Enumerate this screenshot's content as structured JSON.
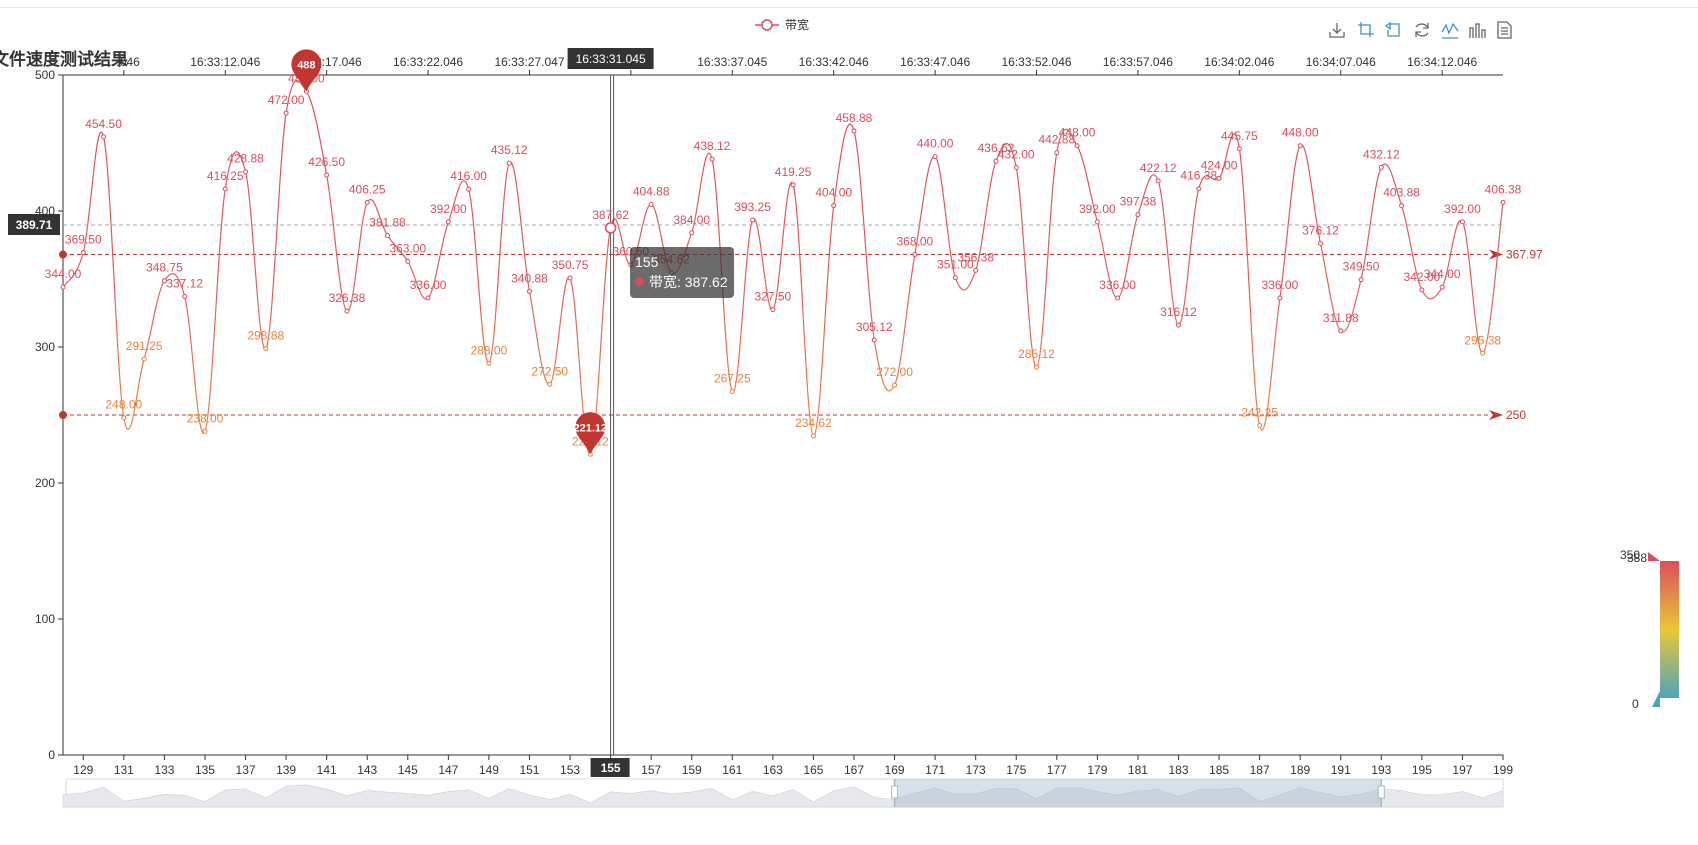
{
  "title": "文件速度测试结果",
  "legend": {
    "series_name": "带宽"
  },
  "toolbox": [
    {
      "name": "download-icon"
    },
    {
      "name": "zoom-icon"
    },
    {
      "name": "zoom-reset-icon"
    },
    {
      "name": "restore-icon"
    },
    {
      "name": "line-chart-icon"
    },
    {
      "name": "bar-chart-icon"
    },
    {
      "name": "data-view-icon"
    }
  ],
  "tooltip": {
    "header": "155",
    "label": "带宽: 387.62"
  },
  "axis_pointer": {
    "top_time": "16:33:31.045",
    "bottom_index": "155",
    "y_value": "389.71"
  },
  "visual_map": {
    "max_label": "388",
    "min_label": "0",
    "handle_label": "350"
  },
  "chart_data": {
    "type": "line",
    "xlabel": "",
    "ylabel": "",
    "x_start": 128,
    "x_end": 199,
    "ylim": [
      0,
      500
    ],
    "y_ticks": [
      "0",
      "100",
      "200",
      "300",
      "400",
      "500"
    ],
    "x_ticks": [
      "129",
      "131",
      "133",
      "135",
      "137",
      "139",
      "141",
      "143",
      "145",
      "147",
      "149",
      "151",
      "153",
      "155",
      "157",
      "159",
      "161",
      "163",
      "165",
      "167",
      "169",
      "171",
      "173",
      "175",
      "177",
      "179",
      "181",
      "183",
      "185",
      "187",
      "189",
      "191",
      "193",
      "195",
      "197",
      "199"
    ],
    "top_time_ticks": [
      {
        "x": 131,
        "label": "…046"
      },
      {
        "x": 136,
        "label": "16:33:12.046"
      },
      {
        "x": 141,
        "label": "16:33:17.046"
      },
      {
        "x": 146,
        "label": "16:33:22.046"
      },
      {
        "x": 151,
        "label": "16:33:27.047"
      },
      {
        "x": 156,
        "label": "…05"
      },
      {
        "x": 161,
        "label": "16:33:37.045"
      },
      {
        "x": 166,
        "label": "16:33:42.046"
      },
      {
        "x": 171,
        "label": "16:33:47.046"
      },
      {
        "x": 176,
        "label": "16:33:52.046"
      },
      {
        "x": 181,
        "label": "16:33:57.046"
      },
      {
        "x": 186,
        "label": "16:34:02.046"
      },
      {
        "x": 191,
        "label": "16:34:07.046"
      },
      {
        "x": 196,
        "label": "16:34:12.046"
      }
    ],
    "series": [
      {
        "name": "带宽",
        "x": [
          128,
          129,
          130,
          131,
          132,
          133,
          134,
          135,
          136,
          137,
          138,
          139,
          140,
          141,
          142,
          143,
          144,
          145,
          146,
          147,
          148,
          149,
          150,
          151,
          152,
          153,
          154,
          155,
          156,
          157,
          158,
          159,
          160,
          161,
          162,
          163,
          164,
          165,
          166,
          167,
          168,
          169,
          170,
          171,
          172,
          173,
          174,
          175,
          176,
          177,
          178,
          179,
          180,
          181,
          182,
          183,
          184,
          185,
          186,
          187,
          188,
          189,
          190,
          191,
          192,
          193,
          194,
          195,
          196,
          197,
          198,
          199
        ],
        "values": [
          344.0,
          369.5,
          454.5,
          248.0,
          291.25,
          348.75,
          337.12,
          238.0,
          416.25,
          428.88,
          298.88,
          472.0,
          488.0,
          426.5,
          326.38,
          406.25,
          381.88,
          363.0,
          336.0,
          392.0,
          416.0,
          288.0,
          435.12,
          340.88,
          272.5,
          350.75,
          221.12,
          387.62,
          360.5,
          404.88,
          354.62,
          384.0,
          438.12,
          267.25,
          393.25,
          327.5,
          419.25,
          234.62,
          404.0,
          458.88,
          305.12,
          272.0,
          368.0,
          440.0,
          351.0,
          356.38,
          436.62,
          432.0,
          285.12,
          442.88,
          448.0,
          392.0,
          336.0,
          397.38,
          422.12,
          316.12,
          416.38,
          424.0,
          445.75,
          242.25,
          336.0,
          448.0,
          376.12,
          311.88,
          349.5,
          432.12,
          403.88,
          342.0,
          344.0,
          392.0,
          295.38,
          406.38
        ],
        "labels": [
          "344.00",
          "369.50",
          "454.50",
          "248.00",
          "291.25",
          "348.75",
          "337.12",
          "238.00",
          "416.25",
          "428.88",
          "298.88",
          "472.00",
          "488.00",
          "426.50",
          "326.38",
          "406.25",
          "381.88",
          "363.00",
          "336.00",
          "392.00",
          "416.00",
          "288.00",
          "435.12",
          "340.88",
          "272.50",
          "350.75",
          "221.12",
          "387.62",
          "360.50",
          "404.88",
          "354.62",
          "384.00",
          "438.12",
          "267.25",
          "393.25",
          "327.50",
          "419.25",
          "234.62",
          "404.00",
          "458.88",
          "305.12",
          "272.00",
          "368.00",
          "440.00",
          "351.00",
          "356.38",
          "436.62",
          "432.00",
          "285.12",
          "442.88",
          "448.00",
          "392.00",
          "336.00",
          "397.38",
          "422.12",
          "316.12",
          "416.38",
          "424.00",
          "445.75",
          "242.25",
          "336.00",
          "448.00",
          "376.12",
          "311.88",
          "349.50",
          "432.12",
          "403.88",
          "342.00",
          "344.00",
          "392.00",
          "295.38",
          "406.38"
        ]
      }
    ],
    "mark_points": [
      {
        "type": "max",
        "x": 140,
        "value": 488,
        "label": "488"
      },
      {
        "type": "min",
        "x": 154,
        "value": 221.12,
        "label": "221.12"
      }
    ],
    "mark_lines": [
      {
        "value": 367.97,
        "label": "367.97"
      },
      {
        "value": 250,
        "label": "250"
      }
    ],
    "data_zoom": {
      "start_x": 169,
      "end_x": 193
    },
    "colors": {
      "high": "#d94e5d",
      "mid": "#eac736",
      "low": "#50a3ba",
      "axis": "#333333",
      "grid": "#cccccc"
    }
  }
}
